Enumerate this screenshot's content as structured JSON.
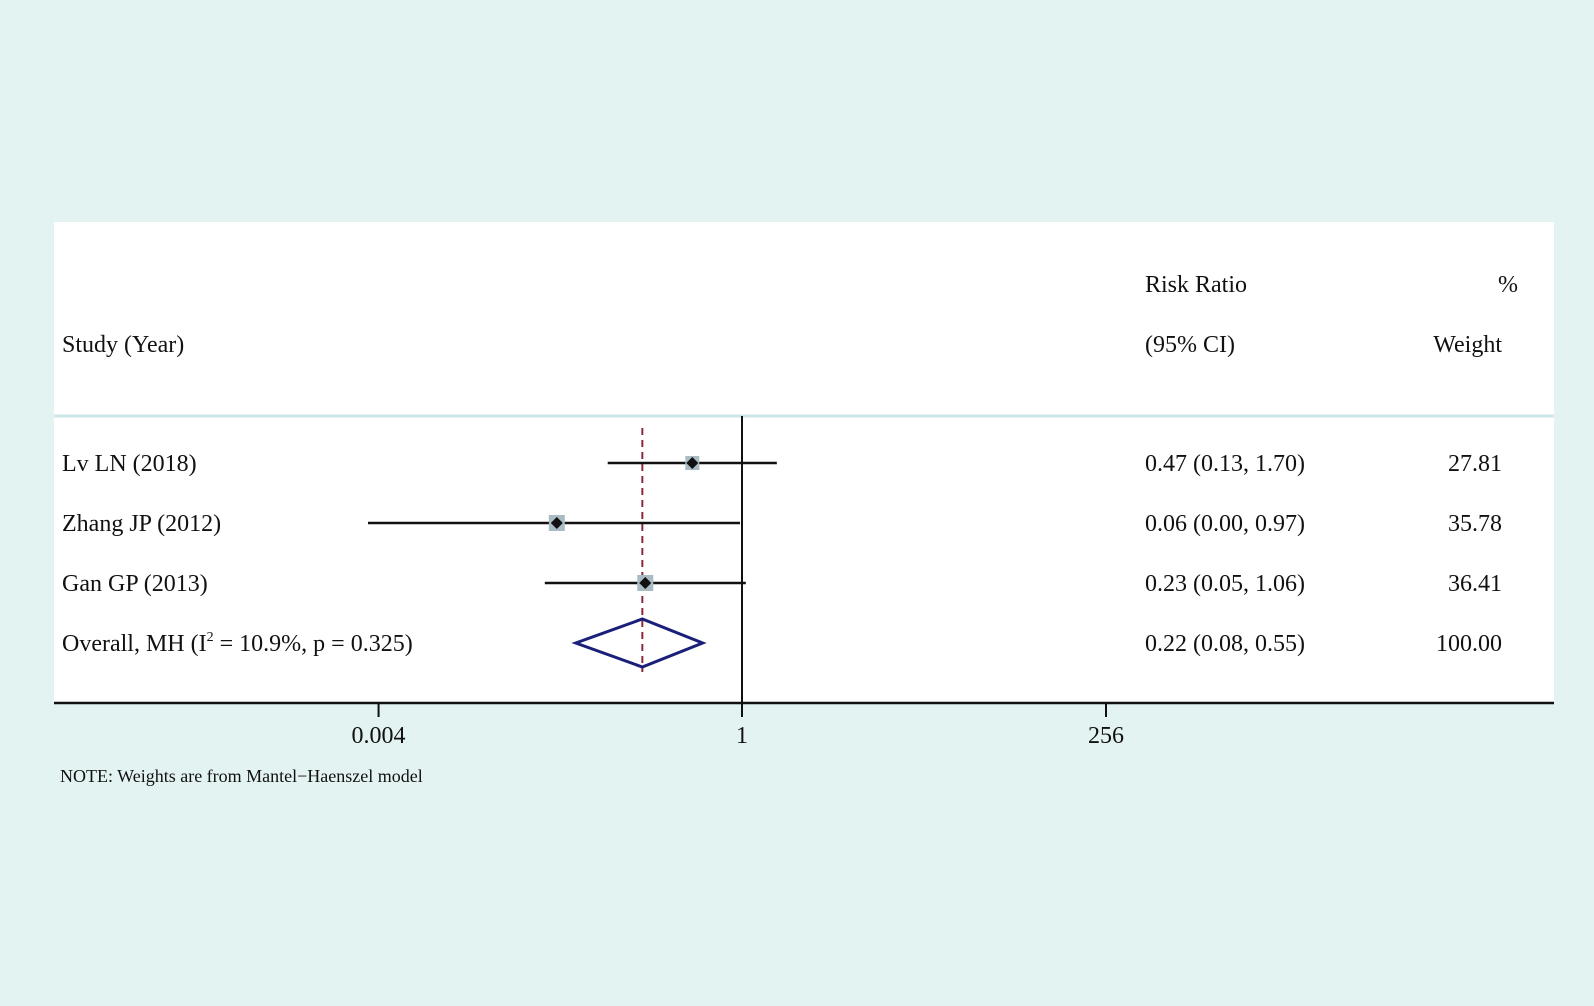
{
  "chart_data": {
    "type": "forest",
    "header": {
      "study_label": "Study (Year)",
      "effect_label_line1": "Risk Ratio",
      "effect_label_line2": "(95% CI)",
      "weight_label_line1": "%",
      "weight_label_line2": "Weight"
    },
    "studies": [
      {
        "label": "Lv LN (2018)",
        "rr": 0.47,
        "lo": 0.13,
        "hi": 1.7,
        "ci_text": "0.47 (0.13, 1.70)",
        "weight": "27.81"
      },
      {
        "label": "Zhang JP (2012)",
        "rr": 0.06,
        "lo": 0.0,
        "hi": 0.97,
        "ci_text": "0.06 (0.00, 0.97)",
        "weight": "35.78"
      },
      {
        "label": "Gan GP (2013)",
        "rr": 0.23,
        "lo": 0.05,
        "hi": 1.06,
        "ci_text": "0.23 (0.05, 1.06)",
        "weight": "36.41"
      }
    ],
    "overall": {
      "label_prefix": "Overall, MH (I",
      "label_sup": "2",
      "label_suffix": " = 10.9%, p = 0.325)",
      "rr": 0.22,
      "lo": 0.08,
      "hi": 0.55,
      "ci_text": "0.22 (0.08, 0.55)",
      "weight": "100.00"
    },
    "x_axis": {
      "scale": "log",
      "ticks": [
        {
          "value": 0.004,
          "label": "0.004"
        },
        {
          "value": 1,
          "label": "1"
        },
        {
          "value": 256,
          "label": "256"
        }
      ],
      "null_line": 1
    },
    "note": "NOTE: Weights are from Mantel−Haenszel model",
    "colors": {
      "background": "#e2f3f2",
      "plot_area": "#ffffff",
      "header_rule": "#cde6e6",
      "ci_line": "#111111",
      "weight_box": "#a9bcc4",
      "diamond": "#1a1f7a",
      "overall_line": "#8b2a3a"
    }
  }
}
